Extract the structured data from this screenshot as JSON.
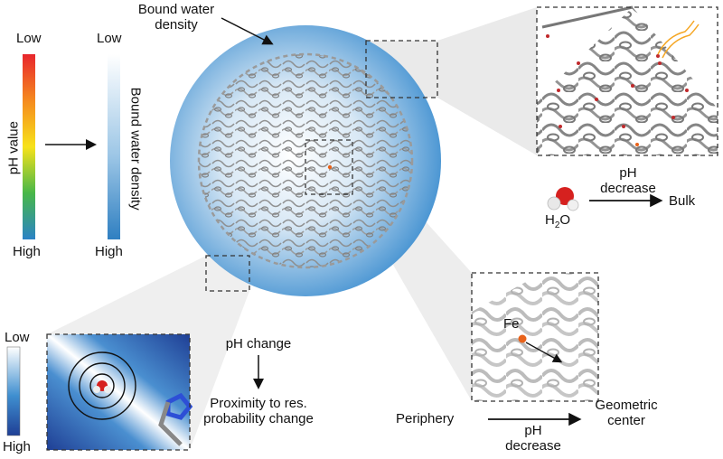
{
  "left_scales": {
    "ph_value": {
      "axis_label": "pH value",
      "top_label": "Low",
      "bottom_label": "High"
    },
    "bound_water": {
      "axis_label": "Bound water density",
      "top_label": "Low",
      "bottom_label": "High"
    }
  },
  "sphere": {
    "callout_label": "Bound water density"
  },
  "zoom_top_right": {
    "arrow_label": "pH decrease",
    "molecule": "H2O",
    "molecule_base": "H",
    "molecule_sub": "2",
    "molecule_tail": "O",
    "target": "Bulk"
  },
  "zoom_bottom_left": {
    "scale_top": "Low",
    "scale_bottom": "High"
  },
  "middle_text": {
    "change": "pH change",
    "result": "Proximity to res. probability change"
  },
  "zoom_bottom_right": {
    "atom_label": "Fe",
    "from_label": "Periphery",
    "arrow_label": "pH decrease",
    "to_label": "Geometric center"
  },
  "colors": {
    "sphere_blue": "#3f8fd0",
    "ph_gradient": [
      "#e8262d",
      "#f58a1f",
      "#f7e21a",
      "#48b749",
      "#2b83c6"
    ],
    "water_gradient": [
      "#ffffff",
      "#2f7fc1"
    ],
    "iron_orange": "#e8621a",
    "oxygen_red": "#d6211f"
  }
}
